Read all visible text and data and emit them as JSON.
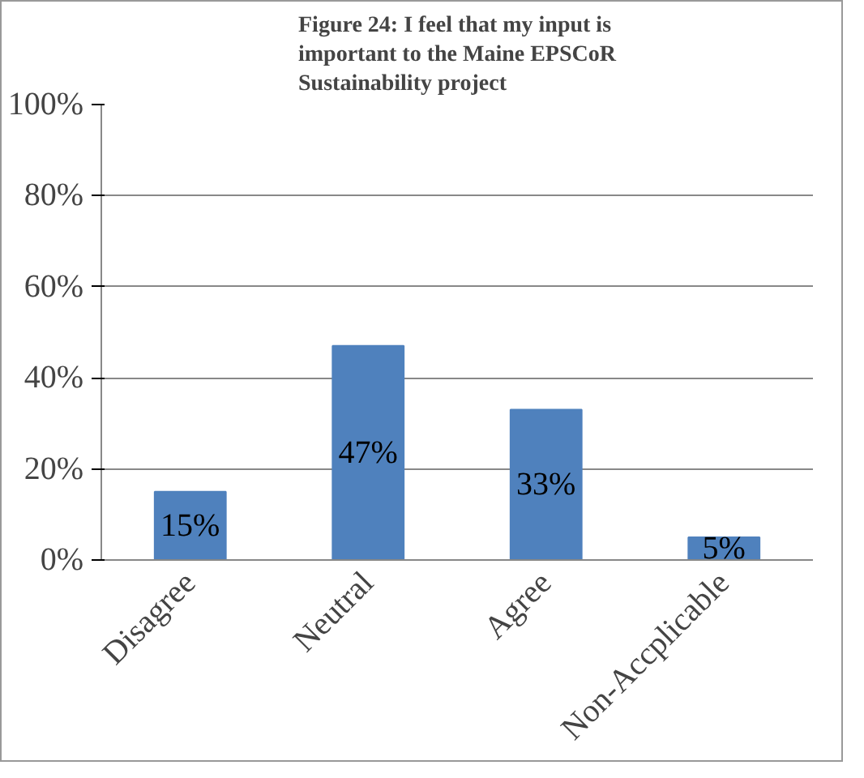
{
  "chart_data": {
    "type": "bar",
    "title": "Figure 24: I feel that my input is important to the Maine EPSCoR Sustainability project",
    "categories": [
      "Disagree",
      "Neutral",
      "Agree",
      "Non-Accplicable"
    ],
    "values": [
      15,
      47,
      33,
      5
    ],
    "value_labels": [
      "15%",
      "47%",
      "33%",
      "5%"
    ],
    "color": "#4f81bd",
    "ylim": [
      0,
      100
    ],
    "yticks": [
      {
        "value": 0,
        "label": "0%"
      },
      {
        "value": 20,
        "label": "20%"
      },
      {
        "value": 40,
        "label": "40%"
      },
      {
        "value": 60,
        "label": "60%"
      },
      {
        "value": 80,
        "label": "80%"
      },
      {
        "value": 100,
        "label": "100%"
      }
    ],
    "grid": "y"
  }
}
